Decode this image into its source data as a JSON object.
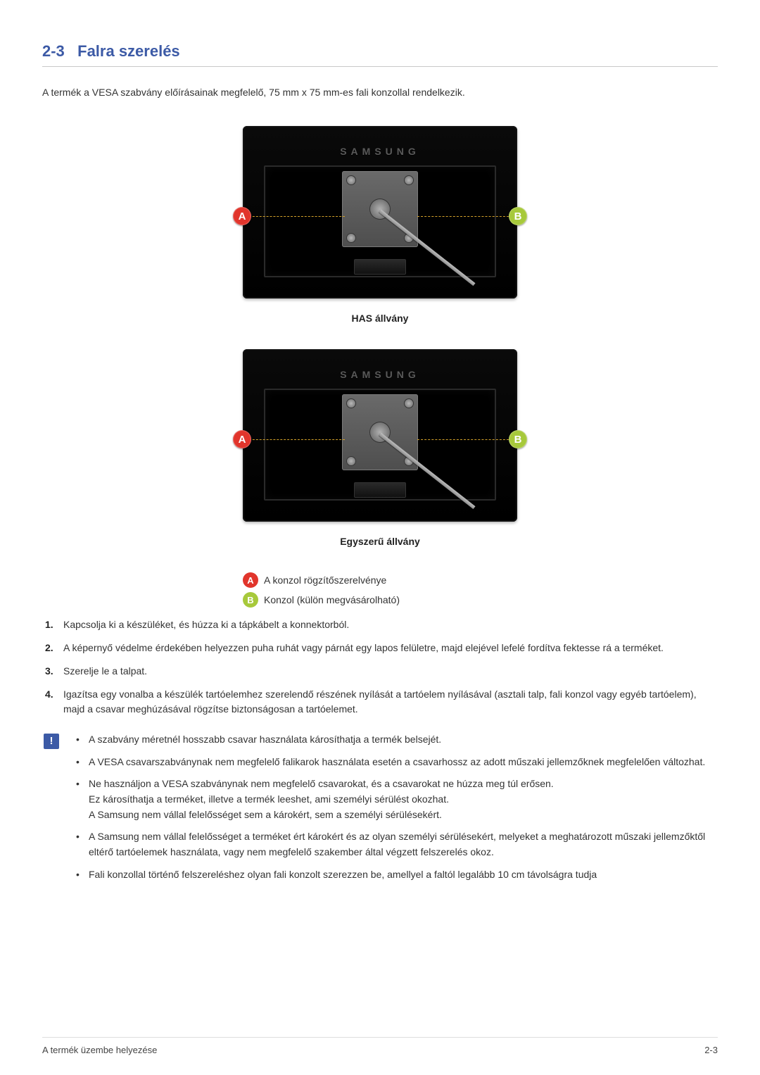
{
  "heading": {
    "number": "2-3",
    "title": "Falra szerelés"
  },
  "intro": "A termék a VESA szabvány előírásainak megfelelő, 75 mm x 75 mm-es fali konzollal rendelkezik.",
  "figures": [
    {
      "brand": "SAMSUNG",
      "caption": "HAS állvány"
    },
    {
      "brand": "SAMSUNG",
      "caption": "Egyszerű állvány"
    }
  ],
  "badges": {
    "A": {
      "letter": "A",
      "color": "#e1352c"
    },
    "B": {
      "letter": "B",
      "color": "#a7c93b"
    }
  },
  "legend": [
    {
      "badge": "A",
      "text": "A konzol rögzítőszerelvénye"
    },
    {
      "badge": "B",
      "text": "Konzol (külön megvásárolható)"
    }
  ],
  "steps": [
    "Kapcsolja ki a készüléket, és húzza ki a tápkábelt a konnektorból.",
    "A képernyő védelme érdekében helyezzen puha ruhát vagy párnát egy lapos felületre, majd elejével lefelé fordítva fektesse rá a terméket.",
    "Szerelje le a talpat.",
    "Igazítsa egy vonalba a készülék tartóelemhez szerelendő részének nyílását a tartóelem nyílásával (asztali talp, fali konzol vagy egyéb tartóelem), majd a csavar meghúzásával rögzítse biztonságosan a tartóelemet."
  ],
  "notes": [
    [
      "A szabvány méretnél hosszabb csavar használata károsíthatja a termék belsejét."
    ],
    [
      "A VESA csavarszabványnak nem megfelelő falikarok használata esetén a csavarhossz az adott műszaki jellemzőknek megfelelően változhat."
    ],
    [
      "Ne használjon a VESA szabványnak nem megfelelő csavarokat, és a csavarokat ne húzza meg túl erősen.",
      "Ez károsíthatja a terméket, illetve a termék leeshet, ami személyi sérülést okozhat.",
      "A Samsung nem vállal felelősséget sem a károkért, sem a személyi sérülésekért."
    ],
    [
      "A Samsung nem vállal felelősséget a terméket ért károkért és az olyan személyi sérülésekért, melyeket a meghatározott műszaki jellemzőktől eltérő tartóelemek használata, vagy nem megfelelő szakember által végzett felszerelés okoz."
    ],
    [
      "Fali konzollal történő felszereléshez olyan fali konzolt szerezzen be, amellyel a faltól legalább 10 cm távolságra tudja"
    ]
  ],
  "footer": {
    "left": "A termék üzembe helyezése",
    "right": "2-3"
  },
  "colors": {
    "heading": "#3c5aa6",
    "dash": "#d3a12a"
  }
}
